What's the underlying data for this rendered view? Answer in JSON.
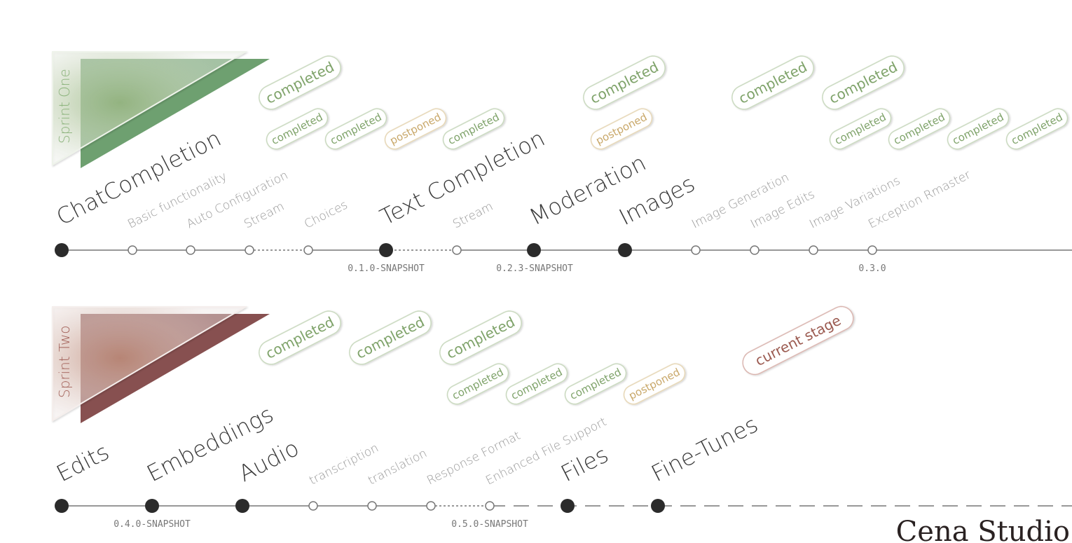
{
  "brand": "Cena Studio",
  "colors": {
    "completed": "#7fa36a",
    "completed_border": "#c8d8bd",
    "postponed": "#c9a86a",
    "postponed_border": "#e6d6b4",
    "current": "#9b5a50",
    "current_border": "#d9b3ad",
    "sprint_one": "#5e9660",
    "sprint_one_title": "#8ab27a",
    "sprint_two": "#7a3d3d",
    "sprint_two_title": "#a3625a",
    "major_node": "#2b2b2b",
    "line": "#777777"
  },
  "sprints": [
    {
      "id": "one",
      "title": "Sprint One",
      "nodes": [
        {
          "label": "ChatCompletion",
          "kind": "major",
          "status": []
        },
        {
          "label": "Basic functionality",
          "kind": "minor",
          "status": [
            "completed"
          ]
        },
        {
          "label": "Auto Configuration",
          "kind": "minor",
          "status": [
            "completed"
          ]
        },
        {
          "label": "Stream",
          "kind": "minor",
          "status": [
            "postponed"
          ]
        },
        {
          "label": "Choices",
          "kind": "minor",
          "status": [
            "completed"
          ]
        },
        {
          "label": "Text Completion",
          "kind": "major",
          "status": [],
          "version": "0.1.0-SNAPSHOT"
        },
        {
          "label": "Stream",
          "kind": "minor",
          "status": []
        },
        {
          "label": "Moderation",
          "kind": "major",
          "status": [
            "completed",
            "postponed"
          ],
          "version": "0.2.3-SNAPSHOT"
        },
        {
          "label": "Images",
          "kind": "major",
          "status": []
        },
        {
          "label": "Image Generation",
          "kind": "minor",
          "status": [
            "completed"
          ]
        },
        {
          "label": "Image Edits",
          "kind": "minor",
          "status": [
            "completed"
          ]
        },
        {
          "label": "Image Variations",
          "kind": "minor",
          "status": [
            "completed"
          ]
        },
        {
          "label": "Exception Rmaster",
          "kind": "minor",
          "status": [
            "completed"
          ],
          "version": "0.3.0"
        }
      ],
      "extra_badges": [
        "completed",
        "completed",
        "completed"
      ]
    },
    {
      "id": "two",
      "title": "Sprint Two",
      "nodes": [
        {
          "label": "Edits",
          "kind": "major",
          "status": []
        },
        {
          "label": "Embeddings",
          "kind": "major",
          "status": [],
          "version": "0.4.0-SNAPSHOT"
        },
        {
          "label": "Audio",
          "kind": "major",
          "status": []
        },
        {
          "label": "transcription",
          "kind": "minor",
          "status": [
            "completed"
          ]
        },
        {
          "label": "translation",
          "kind": "minor",
          "status": [
            "completed"
          ]
        },
        {
          "label": "Response Format",
          "kind": "minor",
          "status": [
            "completed"
          ]
        },
        {
          "label": "Enhanced File Support",
          "kind": "minor",
          "status": [
            "postponed"
          ],
          "version": "0.5.0-SNAPSHOT"
        },
        {
          "label": "Files",
          "kind": "major",
          "status": []
        },
        {
          "label": "Fine-Tunes",
          "kind": "major",
          "status": [
            "current stage"
          ]
        }
      ],
      "extra_badges": [
        "completed",
        "completed",
        "completed"
      ]
    }
  ]
}
